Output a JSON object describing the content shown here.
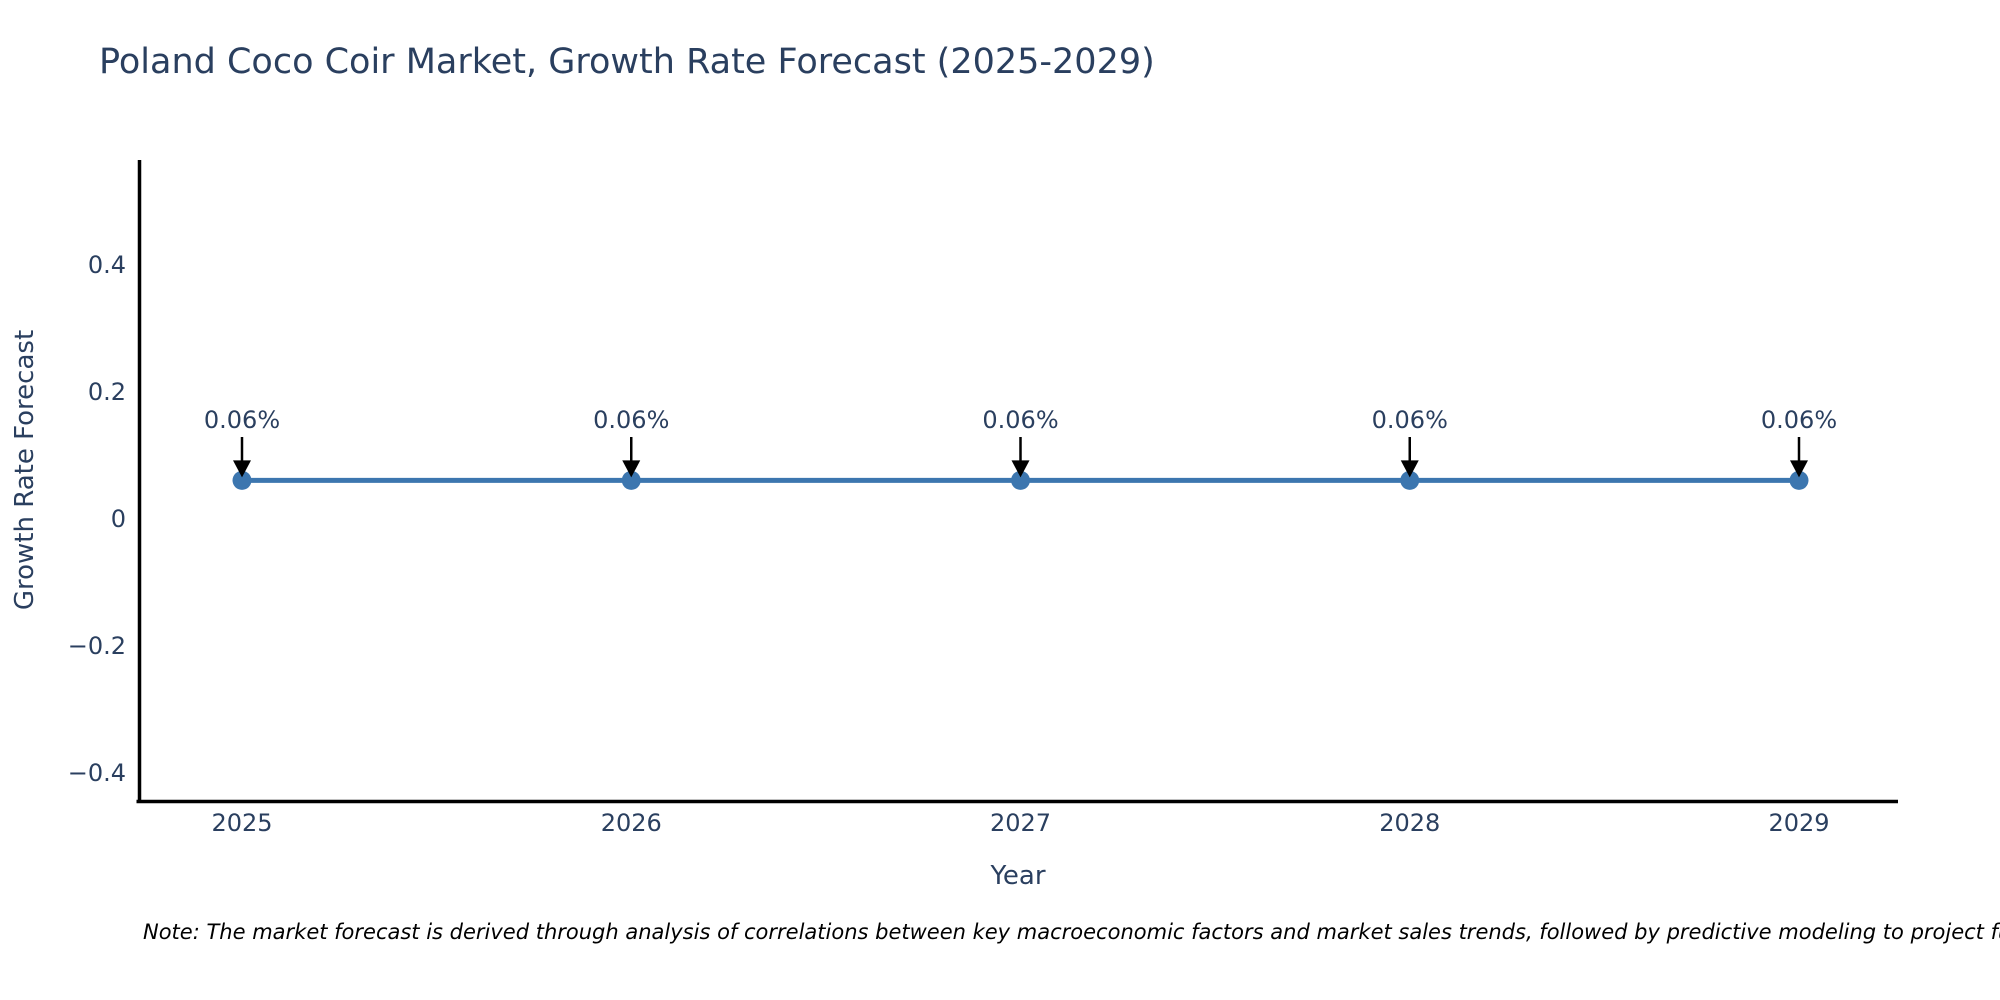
{
  "note": {
    "text": "Note: The market forecast is derived through analysis of correlations between key macroeconomic factors and market sales trends, followed by predictive modeling to project future sales"
  },
  "chart_data": {
    "type": "line",
    "title": "Poland Coco Coir Market, Growth Rate Forecast (2025-2029)",
    "xlabel": "Year",
    "ylabel": "Growth Rate Forecast",
    "categories": [
      2025,
      2026,
      2027,
      2028,
      2029
    ],
    "series": [
      {
        "name": "Growth Rate Forecast",
        "values": [
          0.06,
          0.06,
          0.06,
          0.06,
          0.06
        ],
        "point_labels": [
          "0.06%",
          "0.06%",
          "0.06%",
          "0.06%",
          "0.06%"
        ]
      }
    ],
    "xtick_labels": [
      "2025",
      "2026",
      "2027",
      "2028",
      "2029"
    ],
    "yticks": [
      0.4,
      0.2,
      0,
      -0.2,
      -0.4
    ],
    "ytick_labels": [
      "0.4",
      "0.2",
      "0",
      "−0.2",
      "−0.4"
    ],
    "ylim": [
      -0.445,
      0.565
    ],
    "grid": false,
    "legend": "none",
    "annotations_have_arrows": true,
    "colors": {
      "line": "#3c76af",
      "marker": "#3c76af",
      "arrow": "#000000",
      "text": "#2a3f5f",
      "axis": "#000000",
      "note_text": "#000000",
      "background": "#ffffff"
    }
  }
}
